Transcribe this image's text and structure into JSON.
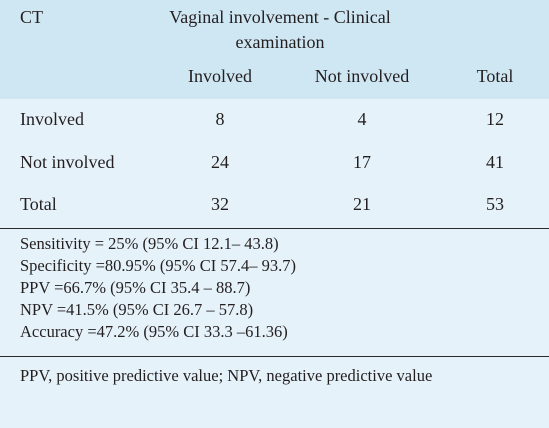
{
  "table": {
    "stub_header": "CT",
    "group_header": "Vaginal involvement - Clinical examination",
    "group_header_line1": "Vaginal involvement - Clinical",
    "group_header_line2": "examination",
    "columns": [
      "Involved",
      "Not involved",
      "Total"
    ],
    "rows": [
      {
        "label": "Involved",
        "values": [
          "8",
          "4",
          "12"
        ]
      },
      {
        "label": "Not involved",
        "values": [
          "24",
          "17",
          "41"
        ]
      },
      {
        "label": "Total",
        "values": [
          "32",
          "21",
          "53"
        ]
      }
    ]
  },
  "stats": [
    "Sensitivity = 25% (95% CI 12.1– 43.8)",
    "Specificity =80.95% (95% CI 57.4– 93.7)",
    "PPV =66.7% (95% CI 35.4 – 88.7)",
    "NPV =41.5% (95% CI 26.7 – 57.8)",
    "Accuracy =47.2% (95% CI 33.3 –61.36)"
  ],
  "footnote": "PPV, positive predictive value; NPV, negative predictive value",
  "colors": {
    "header_bg": "#cfe6f3",
    "body_bg": "#e6f2f9",
    "rule": "#2b2b2b",
    "text": "#231f20"
  }
}
